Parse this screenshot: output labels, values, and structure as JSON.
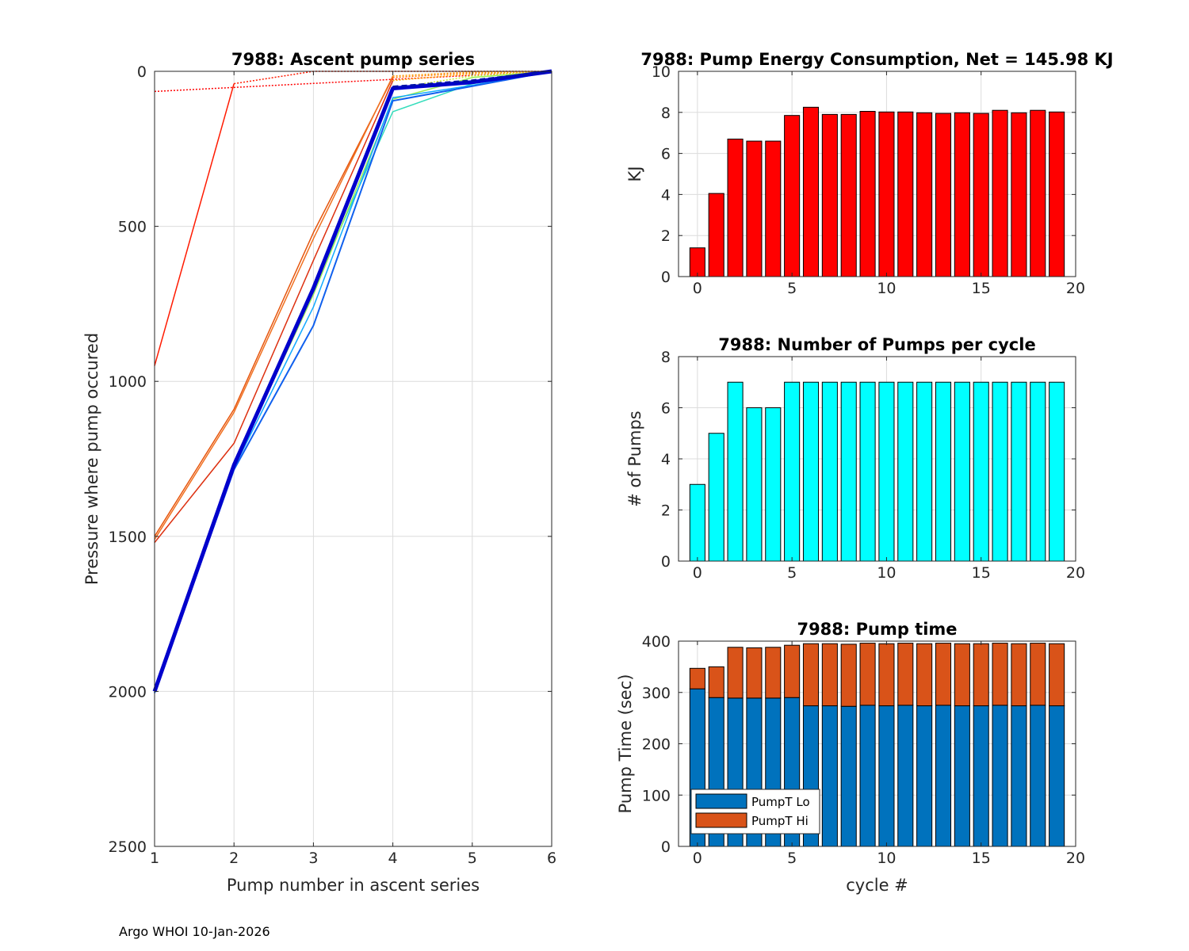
{
  "footer": "Argo WHOI 10-Jan-2026",
  "colors": {
    "energy_bar": "#ff0000",
    "pumps_bar": "#00ffff",
    "pump_lo": "#0072bd",
    "pump_hi": "#d95319",
    "grid": "#dcdcdc",
    "axis": "#262626"
  },
  "chart_data": [
    {
      "id": "ascent",
      "type": "line",
      "title": "7988: Ascent pump series",
      "xlabel": "Pump number in ascent series",
      "ylabel": "Pressure where pump occured",
      "xlim": [
        1,
        6
      ],
      "ylim": [
        0,
        2500
      ],
      "y_reversed": true,
      "xticks": [
        1,
        2,
        3,
        4,
        5,
        6
      ],
      "yticks": [
        0,
        500,
        1000,
        1500,
        2000,
        2500
      ],
      "grid": true,
      "series": [
        {
          "name": "cycle 0",
          "color": "#ff0000",
          "style": "dotted",
          "width": 1.5,
          "x": [
            1,
            6
          ],
          "y": [
            65,
            0
          ]
        },
        {
          "name": "cycle 1",
          "color": "#ff1a00",
          "style": "solid",
          "width": 1.5,
          "x": [
            1,
            2
          ],
          "y": [
            950,
            40
          ]
        },
        {
          "name": "cycle 1 tail",
          "color": "#ff1a00",
          "style": "dotted",
          "width": 1.5,
          "x": [
            2,
            3,
            6
          ],
          "y": [
            40,
            0,
            0
          ]
        },
        {
          "name": "cycle 2",
          "color": "#e6550d",
          "style": "solid",
          "width": 1.5,
          "x": [
            1,
            2,
            3,
            4
          ],
          "y": [
            1500,
            1090,
            520,
            20
          ]
        },
        {
          "name": "cycle 2 tail",
          "color": "#ff7800",
          "style": "dotted",
          "width": 1.5,
          "x": [
            4,
            5,
            6
          ],
          "y": [
            20,
            5,
            0
          ]
        },
        {
          "name": "cycle 3",
          "color": "#f07020",
          "style": "solid",
          "width": 1.5,
          "x": [
            1,
            2,
            3,
            4
          ],
          "y": [
            1510,
            1100,
            540,
            15
          ]
        },
        {
          "name": "cycle 3 tail",
          "color": "#ff9a00",
          "style": "dotted",
          "width": 1.5,
          "x": [
            4,
            5,
            6
          ],
          "y": [
            15,
            2,
            0
          ]
        },
        {
          "name": "cycle 4",
          "color": "#dd3010",
          "style": "solid",
          "width": 1.5,
          "x": [
            1,
            2,
            3,
            4
          ],
          "y": [
            1520,
            1200,
            610,
            30
          ]
        },
        {
          "name": "cycle 4 tail",
          "color": "#ffb000",
          "style": "dotted",
          "width": 1.5,
          "x": [
            4,
            5,
            6
          ],
          "y": [
            30,
            8,
            0
          ]
        },
        {
          "name": "cycle 5",
          "color": "#33ddbb",
          "style": "solid",
          "width": 1.5,
          "x": [
            1,
            2,
            3,
            4,
            5,
            6
          ],
          "y": [
            2000,
            1270,
            700,
            130,
            40,
            0
          ]
        },
        {
          "name": "cycle 6",
          "color": "#99ee55",
          "style": "solid",
          "width": 1.5,
          "x": [
            1,
            2,
            3,
            4,
            5,
            6
          ],
          "y": [
            2000,
            1270,
            720,
            90,
            20,
            0
          ]
        },
        {
          "name": "cycle 7",
          "color": "#ccee33",
          "style": "dotted",
          "width": 1.5,
          "x": [
            4,
            5,
            6
          ],
          "y": [
            55,
            15,
            0
          ]
        },
        {
          "name": "cycle 8",
          "color": "#11aaff",
          "style": "solid",
          "width": 1.5,
          "x": [
            1,
            2,
            3,
            4,
            5,
            6
          ],
          "y": [
            2000,
            1280,
            760,
            85,
            45,
            0
          ]
        },
        {
          "name": "cycle 9",
          "color": "#1060ee",
          "style": "solid",
          "width": 2,
          "x": [
            1,
            2,
            3,
            4,
            5,
            6
          ],
          "y": [
            2005,
            1285,
            820,
            95,
            48,
            0
          ]
        },
        {
          "name": "cycle 10",
          "color": "#0000cc",
          "style": "solid",
          "width": 5,
          "x": [
            1,
            2,
            3,
            4,
            5,
            6
          ],
          "y": [
            2000,
            1270,
            700,
            55,
            35,
            0
          ]
        },
        {
          "name": "cycle 11",
          "color": "#0010aa",
          "style": "dashed",
          "width": 3,
          "x": [
            4,
            5,
            6
          ],
          "y": [
            50,
            30,
            0
          ]
        }
      ]
    },
    {
      "id": "energy",
      "type": "bar",
      "title": "7988: Pump Energy Consumption,  Net = 145.98 KJ",
      "xlabel": "",
      "ylabel": "KJ",
      "xlim": [
        -1,
        20
      ],
      "ylim": [
        0,
        10
      ],
      "xticks": [
        0,
        5,
        10,
        15,
        20
      ],
      "yticks": [
        0,
        2,
        4,
        6,
        8,
        10
      ],
      "x": [
        0,
        1,
        2,
        3,
        4,
        5,
        6,
        7,
        8,
        9,
        10,
        11,
        12,
        13,
        14,
        15,
        16,
        17,
        18,
        19
      ],
      "values": [
        1.4,
        4.05,
        6.7,
        6.6,
        6.6,
        7.85,
        8.25,
        7.9,
        7.9,
        8.05,
        8.02,
        8.02,
        7.98,
        7.95,
        7.98,
        7.95,
        8.1,
        7.98,
        8.1,
        8.02
      ]
    },
    {
      "id": "pumps",
      "type": "bar",
      "title": "7988: Number of Pumps per cycle",
      "xlabel": "",
      "ylabel": "# of Pumps",
      "xlim": [
        -1,
        20
      ],
      "ylim": [
        0,
        8
      ],
      "xticks": [
        0,
        5,
        10,
        15,
        20
      ],
      "yticks": [
        0,
        2,
        4,
        6,
        8
      ],
      "x": [
        0,
        1,
        2,
        3,
        4,
        5,
        6,
        7,
        8,
        9,
        10,
        11,
        12,
        13,
        14,
        15,
        16,
        17,
        18,
        19
      ],
      "values": [
        3,
        5,
        7,
        6,
        6,
        7,
        7,
        7,
        7,
        7,
        7,
        7,
        7,
        7,
        7,
        7,
        7,
        7,
        7,
        7
      ]
    },
    {
      "id": "pumptime",
      "type": "bar",
      "stacked": true,
      "title": "7988: Pump time",
      "xlabel": "cycle #",
      "ylabel": "Pump Time (sec)",
      "xlim": [
        -1,
        20
      ],
      "ylim": [
        0,
        400
      ],
      "xticks": [
        0,
        5,
        10,
        15,
        20
      ],
      "yticks": [
        0,
        100,
        200,
        300,
        400
      ],
      "legend_position": "bottom-left",
      "x": [
        0,
        1,
        2,
        3,
        4,
        5,
        6,
        7,
        8,
        9,
        10,
        11,
        12,
        13,
        14,
        15,
        16,
        17,
        18,
        19
      ],
      "series": [
        {
          "name": "PumpT Lo",
          "values": [
            307,
            290,
            289,
            289,
            289,
            290,
            274,
            274,
            273,
            275,
            274,
            275,
            274,
            275,
            274,
            274,
            275,
            274,
            275,
            274
          ]
        },
        {
          "name": "PumpT Hi",
          "values": [
            40,
            60,
            99,
            98,
            99,
            102,
            121,
            121,
            121,
            121,
            121,
            121,
            121,
            121,
            121,
            121,
            121,
            121,
            121,
            121
          ]
        }
      ]
    }
  ]
}
